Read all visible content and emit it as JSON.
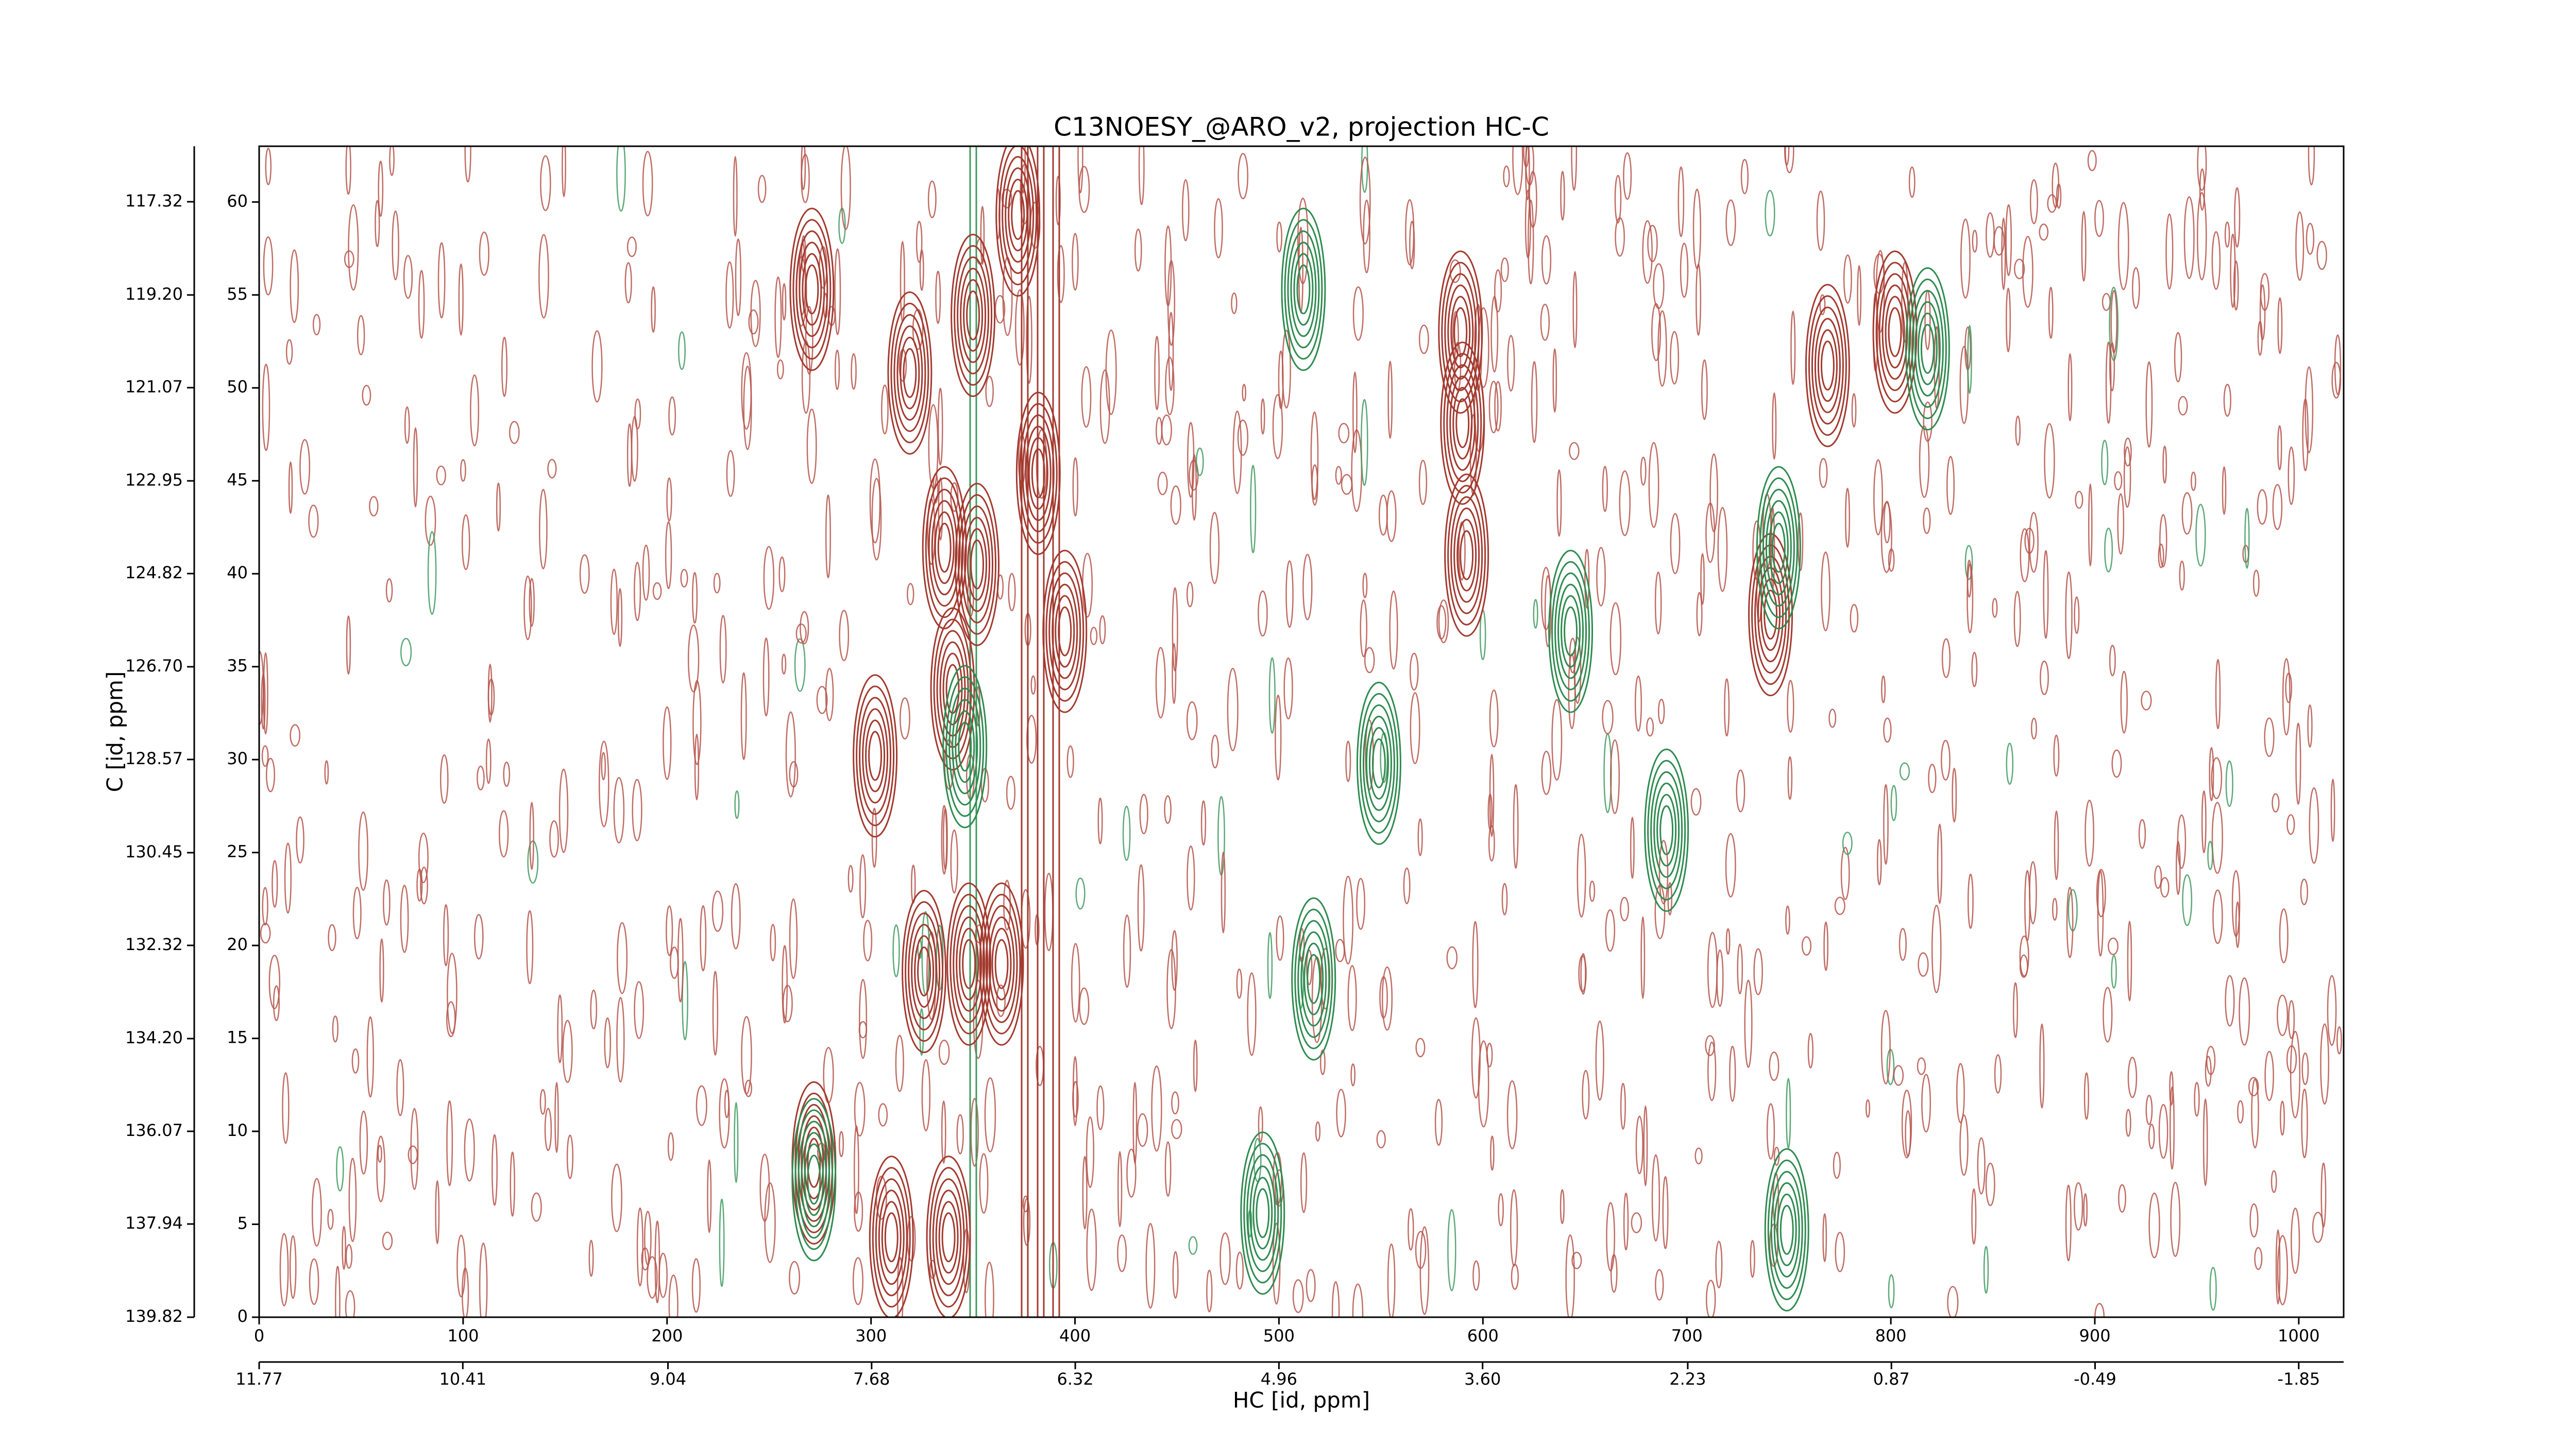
{
  "chart_data": {
    "type": "contour",
    "title": "C13NOESY_@ARO_v2, projection HC-C",
    "xlabel": "HC [id, ppm]",
    "ylabel": "C [id, ppm]",
    "xlim": [
      0,
      1022
    ],
    "xticks": [
      0,
      100,
      200,
      300,
      400,
      500,
      600,
      700,
      800,
      900,
      1000
    ],
    "x2lim": [
      11.77,
      -2.15
    ],
    "x2ticks": [
      11.77,
      10.41,
      9.04,
      7.68,
      6.32,
      4.96,
      {
        "value": 3.6,
        "label": "3.60"
      },
      2.23,
      0.87,
      -0.49,
      -1.85
    ],
    "ylim": [
      0,
      63
    ],
    "yticks": [
      0,
      5,
      10,
      15,
      20,
      25,
      30,
      35,
      40,
      45,
      50,
      55,
      60
    ],
    "y2lim": [
      139.82,
      116.2
    ],
    "y2ticks": [
      139.82,
      137.94,
      136.07,
      {
        "value": 134.2,
        "label": "134.20"
      },
      132.32,
      130.45,
      128.57,
      {
        "value": 126.7,
        "label": "126.70"
      },
      124.82,
      122.95,
      121.07,
      {
        "value": 119.2,
        "label": "119.20"
      },
      117.32
    ],
    "series": [
      {
        "color": "#a33a2f",
        "x": [
          271,
          319,
          350,
          372,
          382,
          336,
          352,
          340,
          395,
          302,
          326,
          348,
          364,
          272,
          310,
          338,
          589,
          590,
          592,
          769,
          802,
          741
        ],
        "values": [
          55.3,
          50.8,
          53.9,
          59.3,
          45.4,
          41.4,
          40.5,
          33.8,
          36.9,
          30.2,
          18.6,
          19,
          19,
          8.3,
          4.3,
          4.3,
          53,
          48.1,
          41,
          51.2,
          53,
          37.8
        ]
      },
      {
        "color": "#2e8b4f",
        "x": [
          512,
          346,
          549,
          517,
          272,
          492,
          643,
          690,
          818,
          745,
          749
        ],
        "values": [
          55.3,
          30.7,
          29.8,
          18.2,
          7.4,
          5.6,
          36.9,
          26.2,
          52.1,
          41.4,
          4.7
        ]
      }
    ]
  }
}
